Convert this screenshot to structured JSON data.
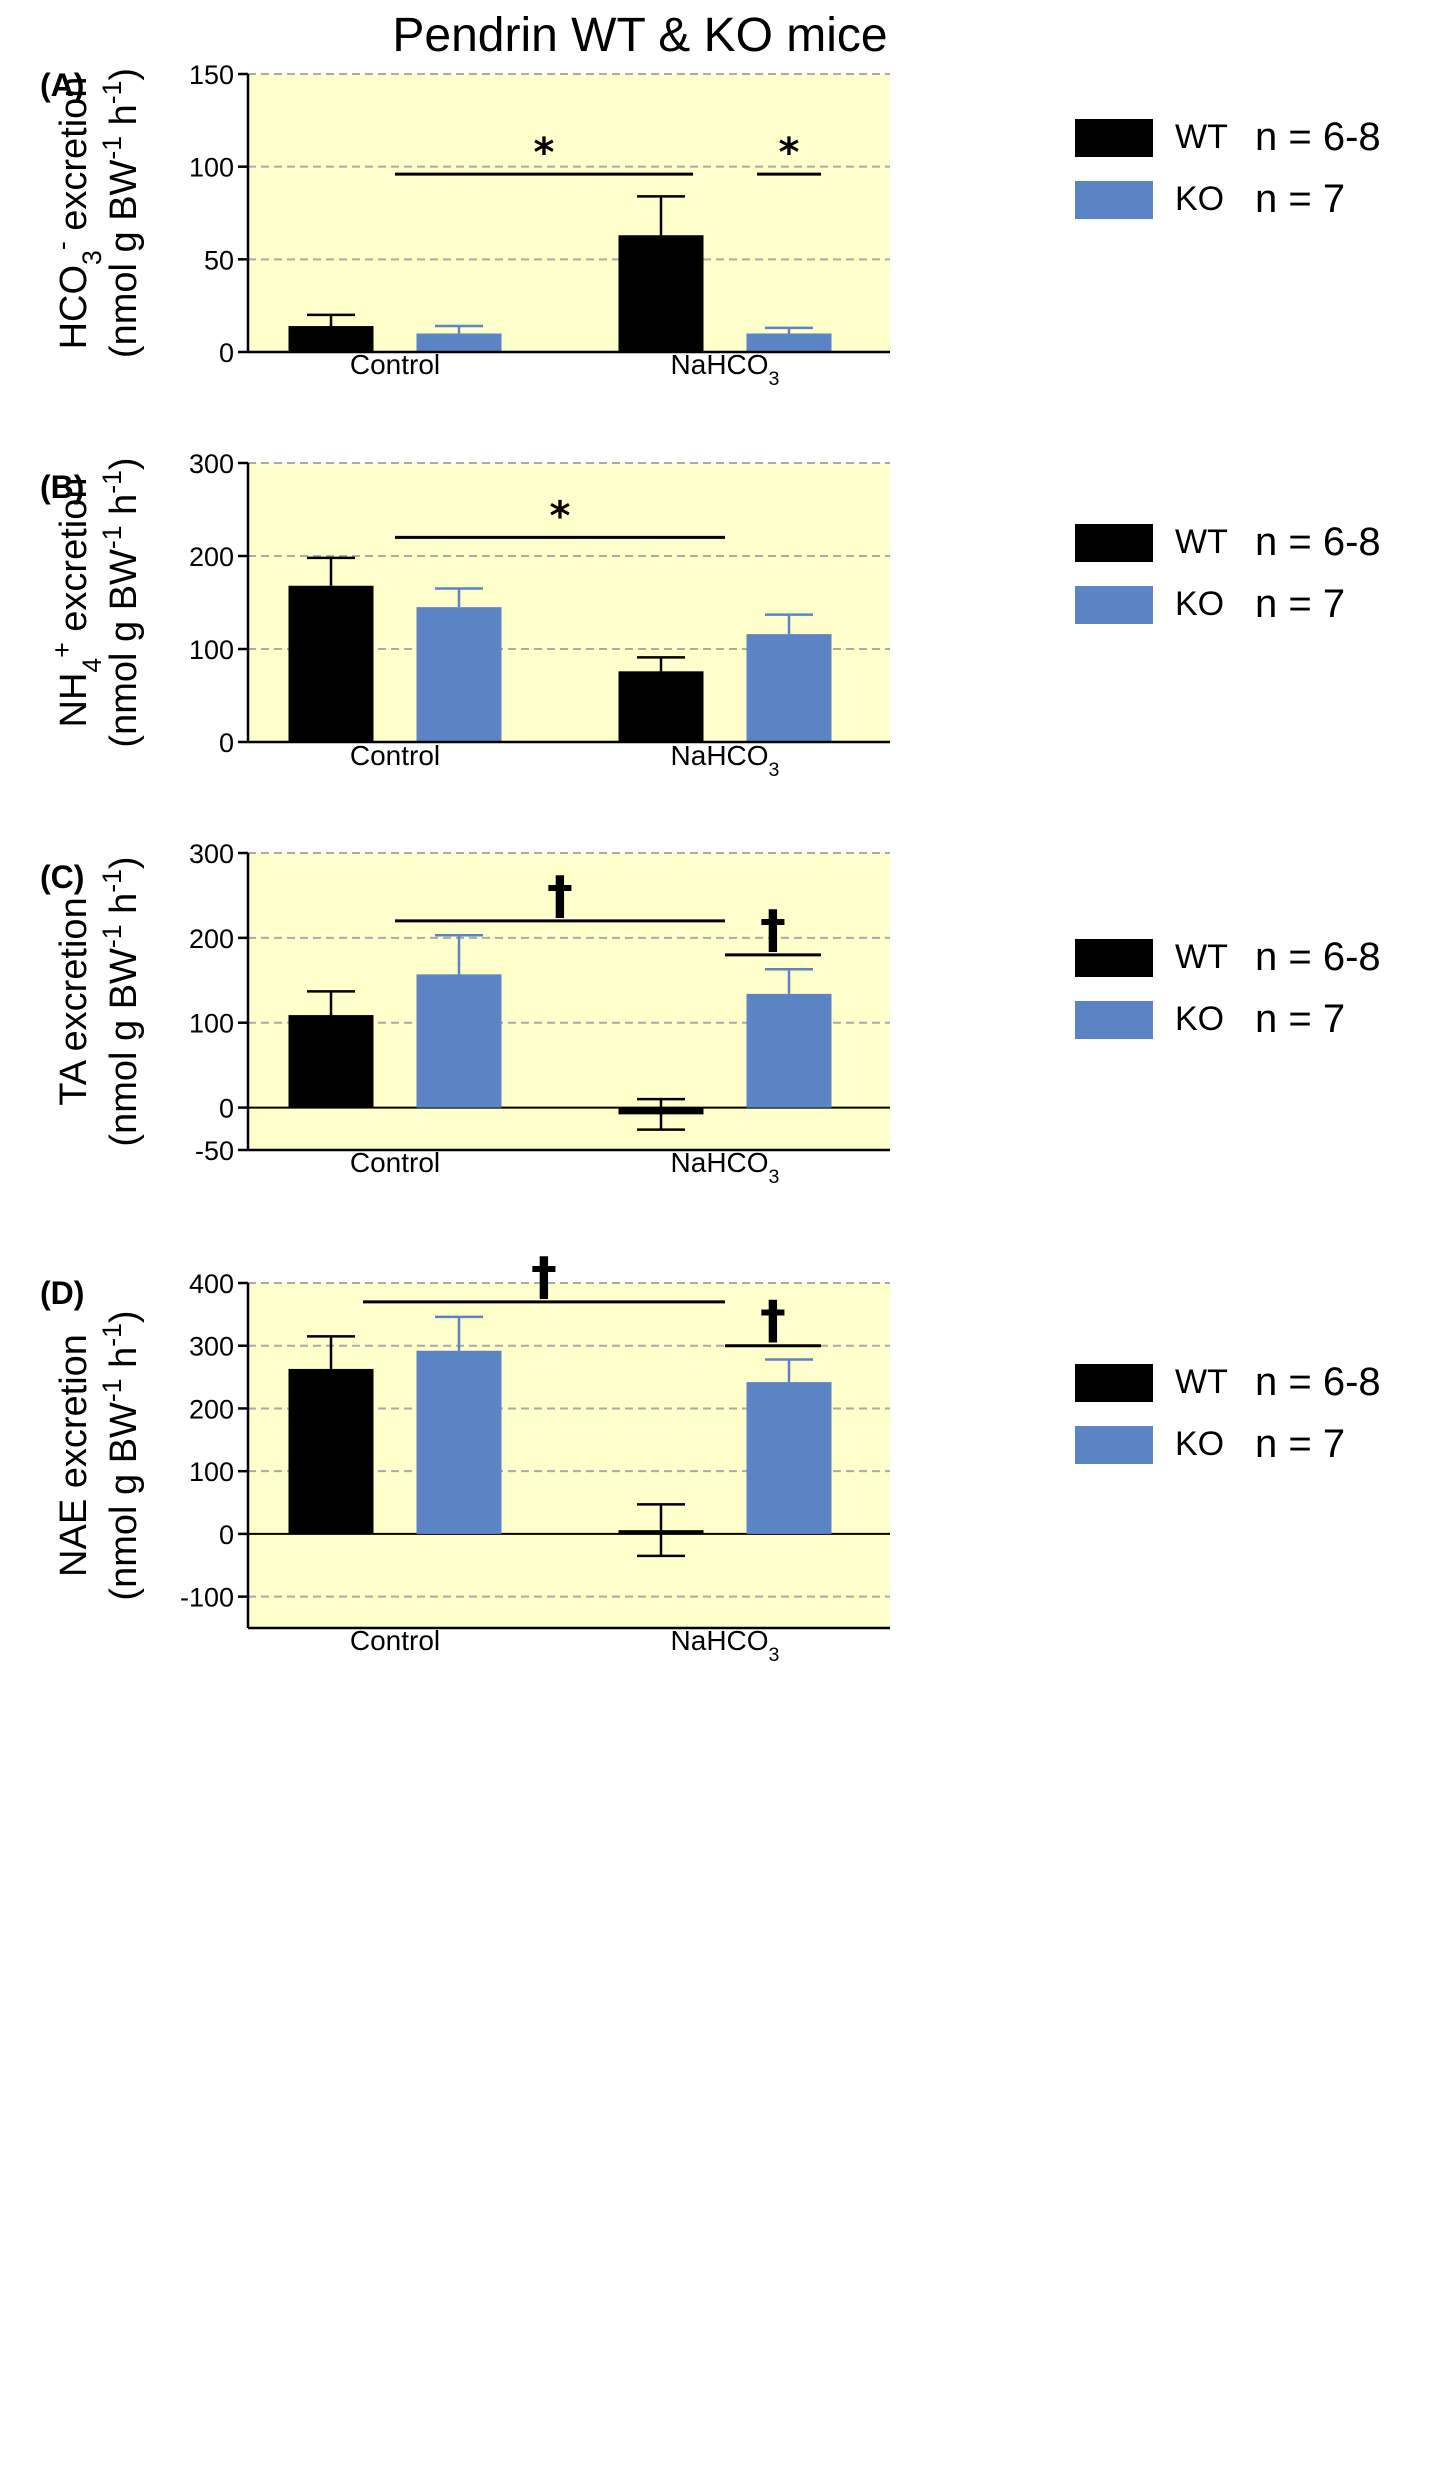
{
  "figure_title": "Pendrin WT & KO mice",
  "colors": {
    "wt": "#000000",
    "ko": "#5b84c4",
    "plot_bg": "#ffffcc",
    "grid": "#aaaaaa"
  },
  "legend_items": [
    {
      "label": "WT",
      "n": "n = 6-8",
      "color": "#000000"
    },
    {
      "label": "KO",
      "n": "n = 7",
      "color": "#5b84c4"
    }
  ],
  "chart_data": [
    {
      "panel": "(A)",
      "type": "bar",
      "ylabel_line1": "HCO3- excretion",
      "ylabel_line2": "(nmol g BW-1 h-1)",
      "ylabel_parts": [
        [
          "HCO",
          ""
        ],
        [
          "3",
          "sub"
        ],
        [
          "-",
          "sup"
        ],
        [
          " excretion",
          ""
        ]
      ],
      "ylabel2_parts": [
        [
          "(nmol g BW",
          ""
        ],
        [
          "-1",
          "sup"
        ],
        [
          " h",
          ""
        ],
        [
          "-1",
          "sup"
        ],
        [
          ")",
          ""
        ]
      ],
      "categories": [
        "Control",
        "NaHCO3"
      ],
      "category_parts": [
        [
          [
            "Control",
            ""
          ]
        ],
        [
          [
            "NaHCO",
            ""
          ],
          [
            "3",
            "sub"
          ]
        ]
      ],
      "ylim": [
        0,
        150
      ],
      "yticks": [
        0,
        50,
        100,
        150
      ],
      "grid": "dashed",
      "series": [
        {
          "name": "WT",
          "values": [
            14,
            63
          ],
          "errors": [
            6,
            21
          ]
        },
        {
          "name": "KO",
          "values": [
            10,
            10
          ],
          "errors": [
            4,
            3
          ]
        }
      ],
      "annotations": [
        {
          "symbol": "*",
          "from": [
            0,
            0
          ],
          "to": [
            1,
            -0.5
          ],
          "y": 96
        },
        {
          "symbol": "*",
          "from": [
            1,
            0.5
          ],
          "to": [
            1,
            1.5
          ],
          "y": 96
        }
      ]
    },
    {
      "panel": "(B)",
      "type": "bar",
      "ylabel_line1": "NH4+ excretion",
      "ylabel_line2": "(nmol g BW-1 h-1)",
      "ylabel_parts": [
        [
          "NH",
          ""
        ],
        [
          "4",
          "sub"
        ],
        [
          "+",
          "sup"
        ],
        [
          " excretion",
          ""
        ]
      ],
      "ylabel2_parts": [
        [
          "(nmol g BW",
          ""
        ],
        [
          "-1",
          "sup"
        ],
        [
          " h",
          ""
        ],
        [
          "-1",
          "sup"
        ],
        [
          ")",
          ""
        ]
      ],
      "categories": [
        "Control",
        "NaHCO3"
      ],
      "category_parts": [
        [
          [
            "Control",
            ""
          ]
        ],
        [
          [
            "NaHCO",
            ""
          ],
          [
            "3",
            "sub"
          ]
        ]
      ],
      "ylim": [
        0,
        300
      ],
      "yticks": [
        0,
        100,
        200,
        300
      ],
      "grid": "dashed",
      "series": [
        {
          "name": "WT",
          "values": [
            168,
            76
          ],
          "errors": [
            30,
            15
          ]
        },
        {
          "name": "KO",
          "values": [
            145,
            116
          ],
          "errors": [
            20,
            21
          ]
        }
      ],
      "annotations": [
        {
          "symbol": "*",
          "from": [
            0,
            0
          ],
          "to": [
            1,
            0
          ],
          "y": 220
        }
      ]
    },
    {
      "panel": "(C)",
      "type": "bar",
      "ylabel_line1": "TA excretion",
      "ylabel_line2": "(nmol g BW-1 h-1)",
      "ylabel_parts": [
        [
          "TA excretion",
          ""
        ]
      ],
      "ylabel2_parts": [
        [
          "(nmol g BW",
          ""
        ],
        [
          "-1",
          "sup"
        ],
        [
          " h",
          ""
        ],
        [
          "-1",
          "sup"
        ],
        [
          ")",
          ""
        ]
      ],
      "categories": [
        "Control",
        "NaHCO3"
      ],
      "category_parts": [
        [
          [
            "Control",
            ""
          ]
        ],
        [
          [
            "NaHCO",
            ""
          ],
          [
            "3",
            "sub"
          ]
        ]
      ],
      "ylim": [
        -50,
        300
      ],
      "yticks": [
        -50,
        0,
        100,
        200,
        300
      ],
      "grid": "dashed",
      "series": [
        {
          "name": "WT",
          "values": [
            109,
            -8
          ],
          "errors": [
            28,
            18
          ]
        },
        {
          "name": "KO",
          "values": [
            157,
            134
          ],
          "errors": [
            46,
            29
          ]
        }
      ],
      "annotations": [
        {
          "symbol": "†",
          "from": [
            0,
            0
          ],
          "to": [
            1,
            0
          ],
          "y": 220
        },
        {
          "symbol": "†",
          "from": [
            1,
            0
          ],
          "to": [
            1,
            1.5
          ],
          "y": 180
        }
      ]
    },
    {
      "panel": "(D)",
      "type": "bar",
      "ylabel_line1": "NAE excretion",
      "ylabel_line2": "(nmol g BW-1 h-1)",
      "ylabel_parts": [
        [
          "NAE excretion",
          ""
        ]
      ],
      "ylabel2_parts": [
        [
          "(nmol g BW",
          ""
        ],
        [
          "-1",
          "sup"
        ],
        [
          " h",
          ""
        ],
        [
          "-1",
          "sup"
        ],
        [
          ")",
          ""
        ]
      ],
      "categories": [
        "Control",
        "NaHCO3"
      ],
      "category_parts": [
        [
          [
            "Control",
            ""
          ]
        ],
        [
          [
            "NaHCO",
            ""
          ],
          [
            "3",
            "sub"
          ]
        ]
      ],
      "ylim": [
        -150,
        400
      ],
      "yticks": [
        -100,
        0,
        100,
        200,
        300,
        400
      ],
      "grid": "dashed",
      "series": [
        {
          "name": "WT",
          "values": [
            263,
            6
          ],
          "errors": [
            52,
            41
          ]
        },
        {
          "name": "KO",
          "values": [
            292,
            242
          ],
          "errors": [
            54,
            36
          ]
        }
      ],
      "annotations": [
        {
          "symbol": "†",
          "from": [
            0,
            -0.5
          ],
          "to": [
            1,
            0
          ],
          "y": 370
        },
        {
          "symbol": "†",
          "from": [
            1,
            0
          ],
          "to": [
            1,
            1.5
          ],
          "y": 300
        }
      ]
    }
  ]
}
